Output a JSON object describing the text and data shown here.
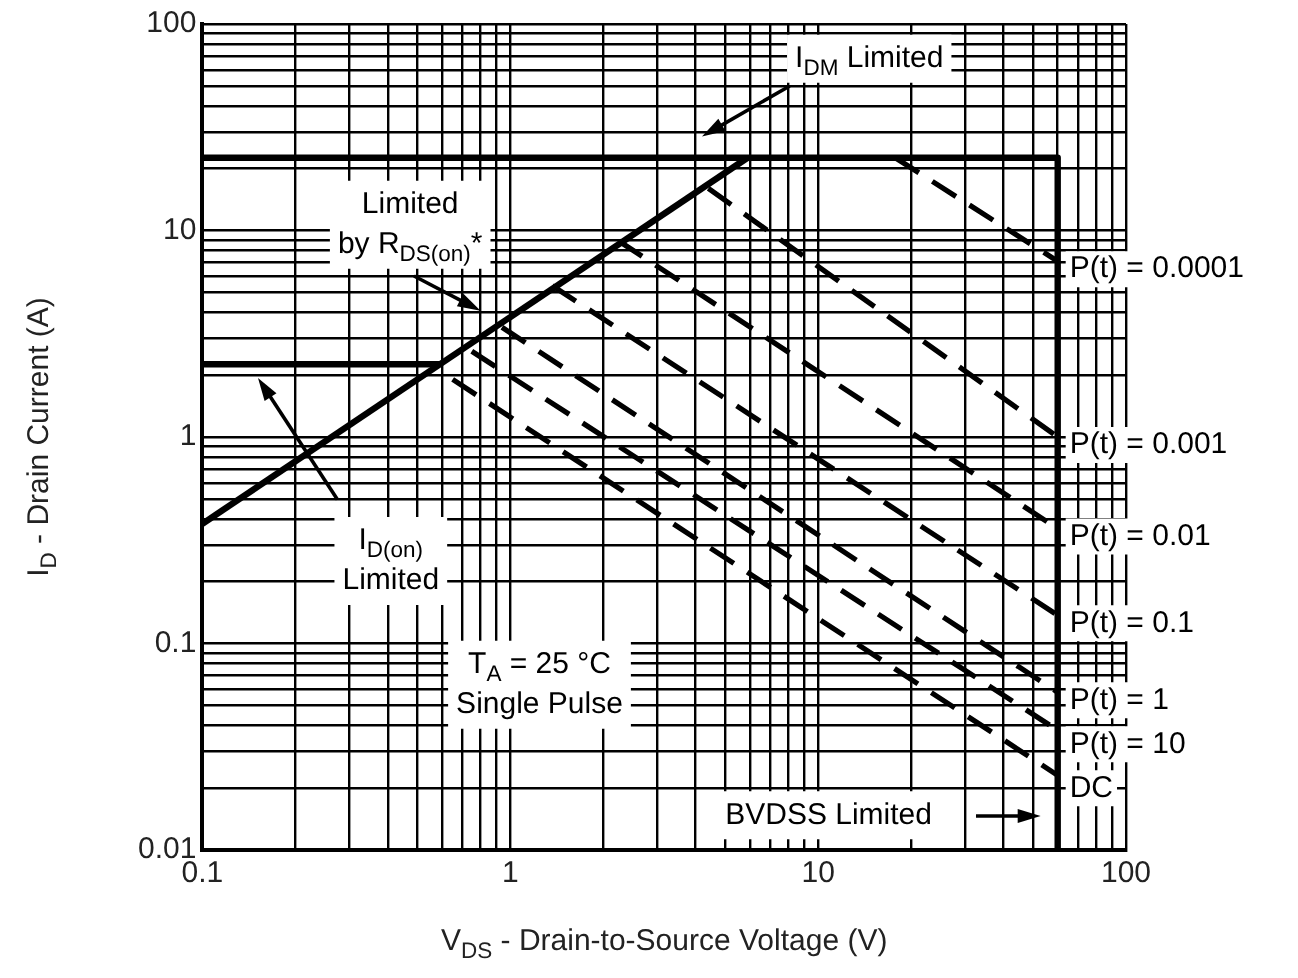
{
  "chart_data": {
    "type": "line",
    "xlabel": "V$_{DS}$ - Drain-to-Source Voltage (V)",
    "ylabel": "I$_{D}$ - Drain Current (A)",
    "log": "xy",
    "grid": true,
    "legend": false,
    "marker": "none",
    "xlim": [
      0.1,
      100
    ],
    "ylim": [
      0.01,
      100
    ],
    "xticks": [
      0.1,
      {
        "value": 0.2,
        "label": null
      },
      {
        "value": 0.3,
        "label": null
      },
      {
        "value": 0.4,
        "label": null
      },
      {
        "value": 0.5,
        "label": null
      },
      {
        "value": 0.6,
        "label": null
      },
      {
        "value": 0.7,
        "label": null
      },
      {
        "value": 0.8,
        "label": null
      },
      {
        "value": 0.9,
        "label": null
      },
      1,
      {
        "value": 2,
        "label": null
      },
      {
        "value": 3,
        "label": null
      },
      {
        "value": 4,
        "label": null
      },
      {
        "value": 5,
        "label": null
      },
      {
        "value": 6,
        "label": null
      },
      {
        "value": 7,
        "label": null
      },
      {
        "value": 8,
        "label": null
      },
      {
        "value": 9,
        "label": null
      },
      10,
      {
        "value": 20,
        "label": null
      },
      {
        "value": 30,
        "label": null
      },
      {
        "value": 40,
        "label": null
      },
      {
        "value": 50,
        "label": null
      },
      {
        "value": 60,
        "label": null
      },
      {
        "value": 70,
        "label": null
      },
      {
        "value": 80,
        "label": null
      },
      {
        "value": 90,
        "label": null
      },
      100
    ],
    "yticks": [
      0.01,
      {
        "value": 0.02,
        "label": null
      },
      {
        "value": 0.03,
        "label": null
      },
      {
        "value": 0.04,
        "label": null
      },
      {
        "value": 0.05,
        "label": null
      },
      {
        "value": 0.06,
        "label": null
      },
      {
        "value": 0.07,
        "label": null
      },
      {
        "value": 0.08,
        "label": null
      },
      {
        "value": 0.09,
        "label": null
      },
      0.1,
      {
        "value": 0.2,
        "label": null
      },
      {
        "value": 0.3,
        "label": null
      },
      {
        "value": 0.4,
        "label": null
      },
      {
        "value": 0.5,
        "label": null
      },
      {
        "value": 0.6,
        "label": null
      },
      {
        "value": 0.7,
        "label": null
      },
      {
        "value": 0.8,
        "label": null
      },
      {
        "value": 0.9,
        "label": null
      },
      1,
      {
        "value": 2,
        "label": null
      },
      {
        "value": 3,
        "label": null
      },
      {
        "value": 4,
        "label": null
      },
      {
        "value": 5,
        "label": null
      },
      {
        "value": 6,
        "label": null
      },
      {
        "value": 7,
        "label": null
      },
      {
        "value": 8,
        "label": null
      },
      {
        "value": 9,
        "label": null
      },
      10,
      {
        "value": 20,
        "label": null
      },
      {
        "value": 30,
        "label": null
      },
      {
        "value": 40,
        "label": null
      },
      {
        "value": 50,
        "label": null
      },
      {
        "value": 60,
        "label": null
      },
      {
        "value": 70,
        "label": null
      },
      {
        "value": 80,
        "label": null
      },
      {
        "value": 90,
        "label": null
      },
      100
    ],
    "series": [
      {
        "color": "#000000",
        "line_style": "solid",
        "x": [
          0.1,
          5.9
        ],
        "values": [
          0.38,
          22.5
        ]
      },
      {
        "color": "#000000",
        "line_style": "solid",
        "x": [
          0.1,
          0.59
        ],
        "values": [
          2.25,
          2.25
        ]
      },
      {
        "color": "#000000",
        "line_style": "solid",
        "x": [
          0.1,
          60,
          60
        ],
        "values": [
          22.5,
          22.5,
          0.01
        ]
      },
      {
        "name": "P(t) = 0.0001",
        "color": "#000000",
        "line_style": "dashed",
        "x": [
          17.8,
          60
        ],
        "values": [
          22.5,
          7.1
        ]
      },
      {
        "name": "P(t) = 0.001",
        "color": "#000000",
        "line_style": "dashed",
        "x": [
          4.4,
          60
        ],
        "values": [
          16,
          1.0
        ]
      },
      {
        "name": "P(t) = 0.01",
        "color": "#000000",
        "line_style": "dashed",
        "x": [
          2.25,
          60
        ],
        "values": [
          8.9,
          0.36
        ]
      },
      {
        "name": "P(t) = 0.1",
        "color": "#000000",
        "line_style": "dashed",
        "x": [
          1.37,
          60
        ],
        "values": [
          5.4,
          0.137
        ]
      },
      {
        "name": "P(t) = 1",
        "color": "#000000",
        "line_style": "dashed",
        "x": [
          0.94,
          60
        ],
        "values": [
          3.4,
          0.058
        ]
      },
      {
        "name": "P(t) = 10",
        "color": "#000000",
        "line_style": "dashed",
        "x": [
          0.75,
          60
        ],
        "values": [
          2.6,
          0.038
        ]
      },
      {
        "name": "DC",
        "color": "#000000",
        "line_style": "dashed",
        "x": [
          0.65,
          60
        ],
        "values": [
          1.9,
          0.023
        ]
      }
    ],
    "annotations": [
      "I$_{DM}$ Limited",
      "Limited\nby R$_{DS(on)}$*",
      "I$_{D(on)}$\nLimited",
      "T$_{A}$ = 25 °C\nSingle Pulse",
      "BVDSS Limited"
    ]
  }
}
